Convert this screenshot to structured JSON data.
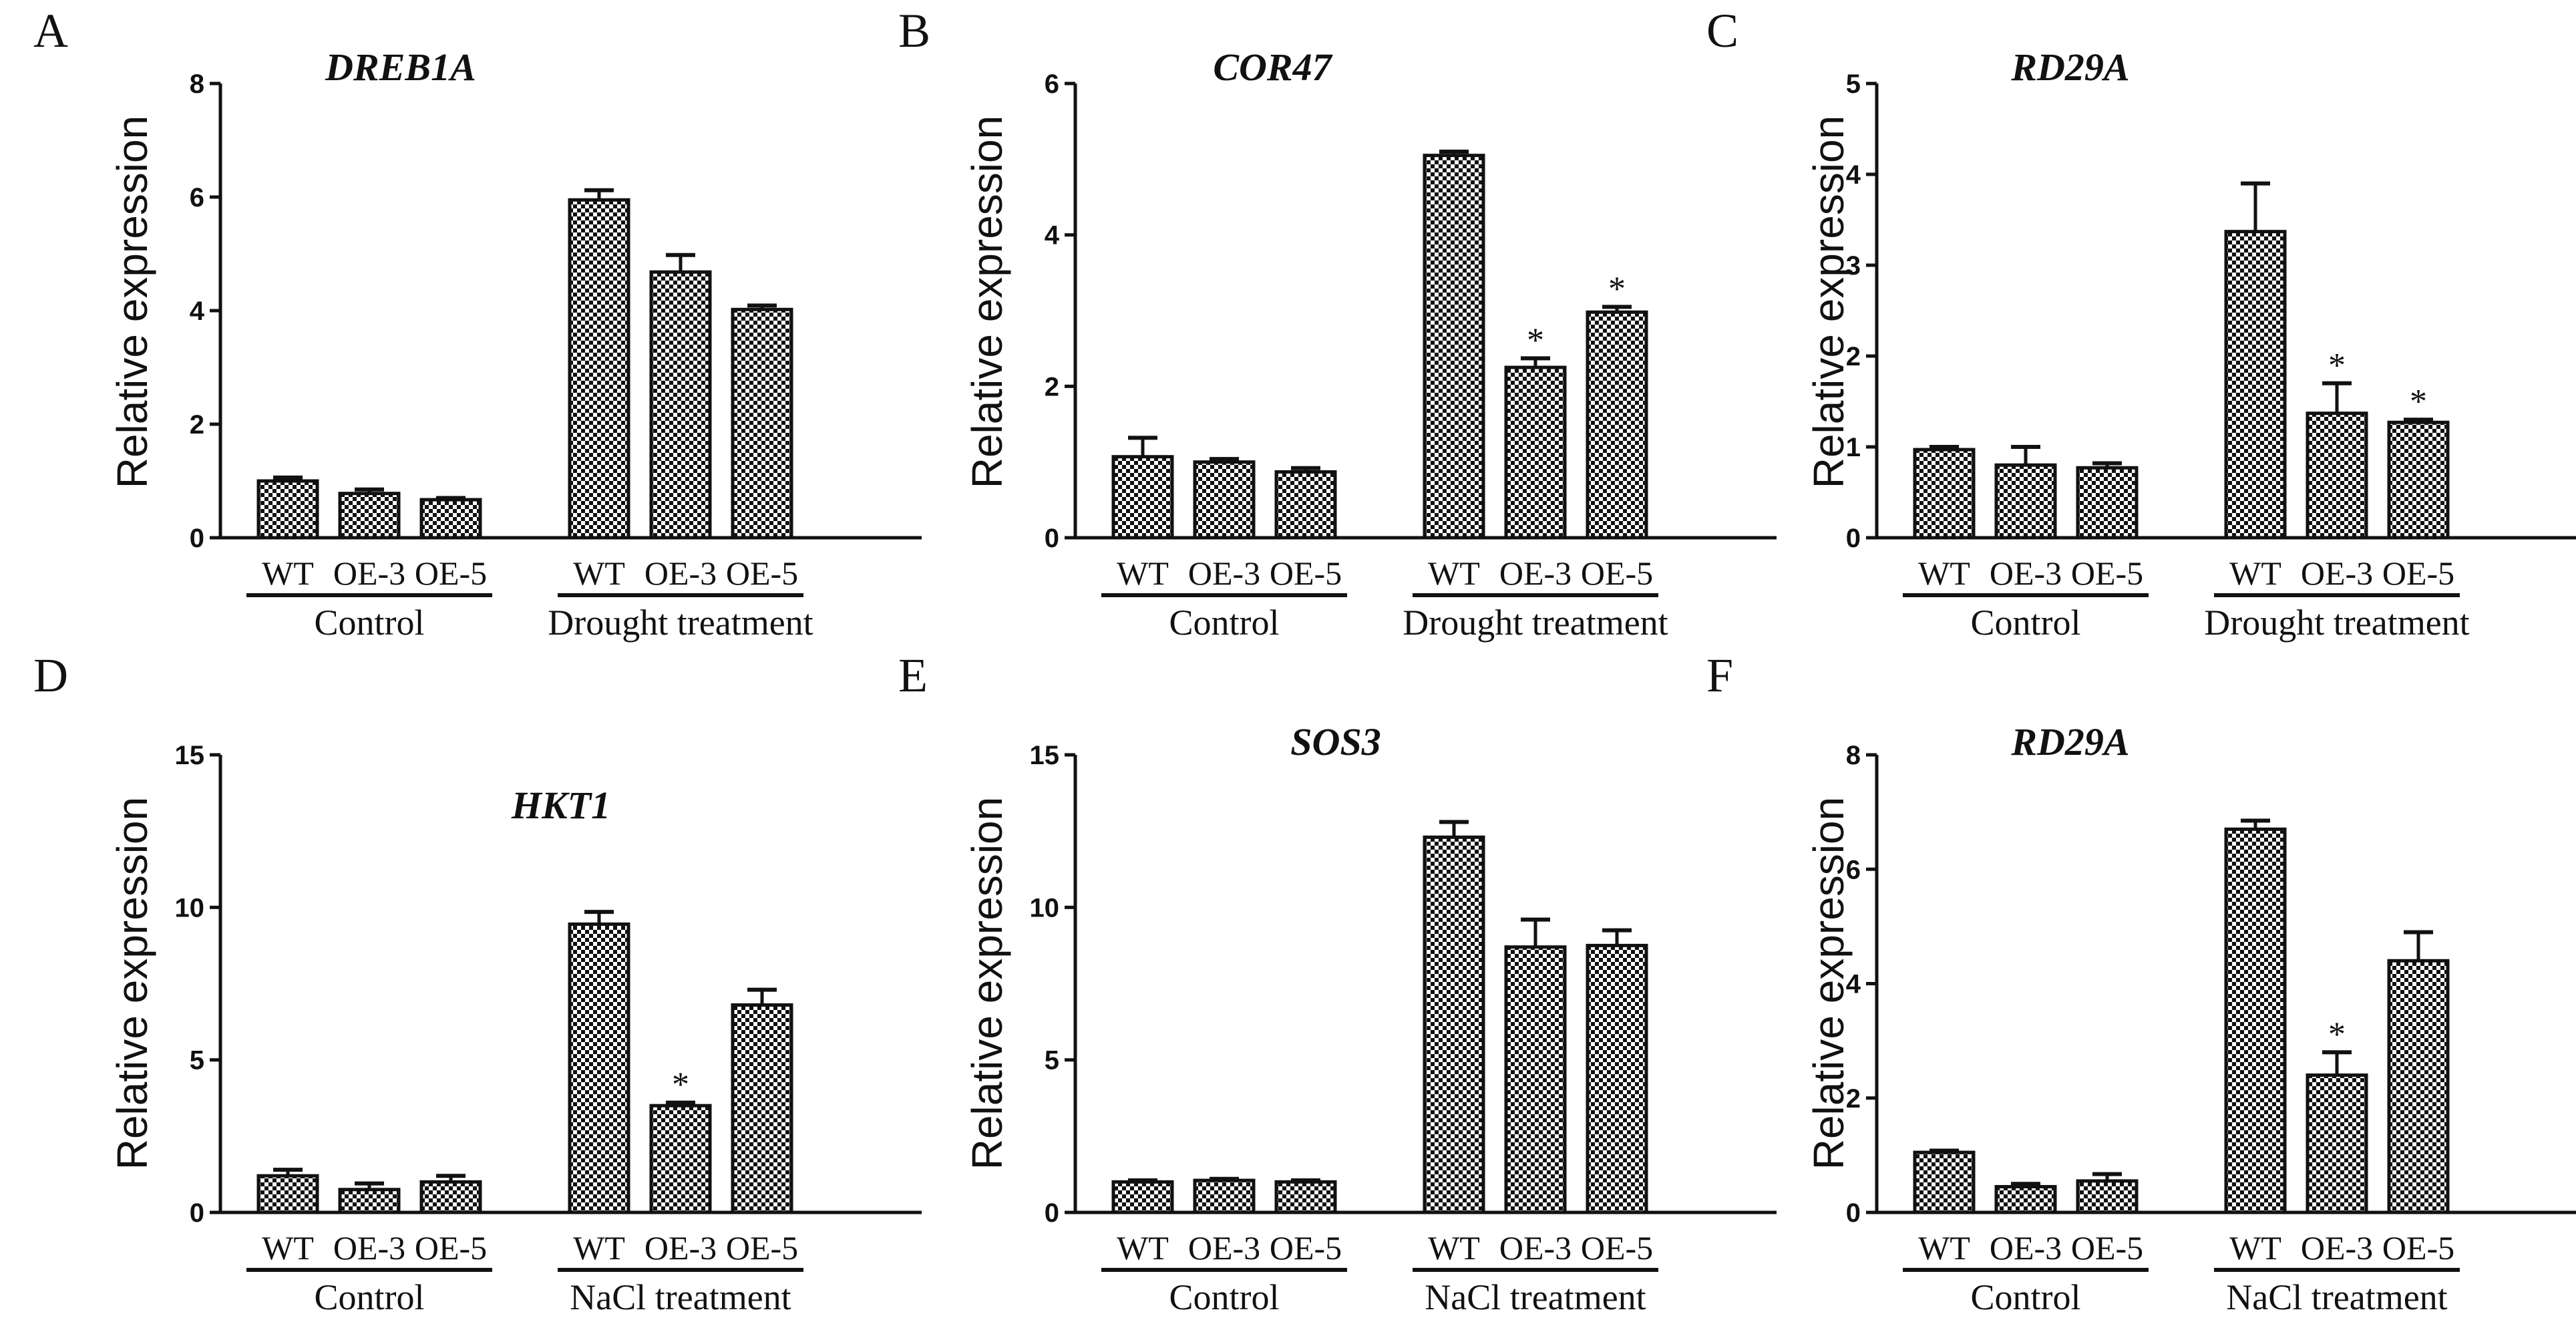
{
  "chart_data": [
    {
      "type": "bar",
      "panel": "A",
      "title": "DREB1A",
      "ylabel": "Relative expression",
      "ylim": [
        0,
        8
      ],
      "yticks": [
        0,
        2,
        4,
        6,
        8
      ],
      "groups": [
        {
          "label": "Control",
          "categories": [
            "WT",
            "OE-3",
            "OE-5"
          ],
          "values": [
            1.0,
            0.78,
            0.67
          ],
          "errors": [
            0.06,
            0.07,
            0.03
          ],
          "significant": [
            false,
            false,
            false
          ]
        },
        {
          "label": "Drought treatment",
          "categories": [
            "WT",
            "OE-3",
            "OE-5"
          ],
          "values": [
            5.95,
            4.68,
            4.02
          ],
          "errors": [
            0.17,
            0.3,
            0.07
          ],
          "significant": [
            false,
            false,
            false
          ]
        }
      ]
    },
    {
      "type": "bar",
      "panel": "B",
      "title": "COR47",
      "ylabel": "Relative expression",
      "ylim": [
        0,
        6
      ],
      "yticks": [
        0,
        2,
        4,
        6
      ],
      "groups": [
        {
          "label": "Control",
          "categories": [
            "WT",
            "OE-3",
            "OE-5"
          ],
          "values": [
            1.07,
            1.0,
            0.87
          ],
          "errors": [
            0.25,
            0.04,
            0.05
          ],
          "significant": [
            false,
            false,
            false
          ]
        },
        {
          "label": "Drought treatment",
          "categories": [
            "WT",
            "OE-3",
            "OE-5"
          ],
          "values": [
            5.05,
            2.25,
            2.98
          ],
          "errors": [
            0.05,
            0.12,
            0.07
          ],
          "significant": [
            false,
            true,
            true
          ]
        }
      ]
    },
    {
      "type": "bar",
      "panel": "C",
      "title": "RD29A",
      "ylabel": "Relative expression",
      "ylim": [
        0,
        5
      ],
      "yticks": [
        0,
        1,
        2,
        3,
        4,
        5
      ],
      "groups": [
        {
          "label": "Control",
          "categories": [
            "WT",
            "OE-3",
            "OE-5"
          ],
          "values": [
            0.97,
            0.8,
            0.77
          ],
          "errors": [
            0.03,
            0.2,
            0.05
          ],
          "significant": [
            false,
            false,
            false
          ]
        },
        {
          "label": "Drought treatment",
          "categories": [
            "WT",
            "OE-3",
            "OE-5"
          ],
          "values": [
            3.37,
            1.37,
            1.27
          ],
          "errors": [
            0.53,
            0.33,
            0.03
          ],
          "significant": [
            false,
            true,
            true
          ]
        }
      ]
    },
    {
      "type": "bar",
      "panel": "D",
      "title": "HKT1",
      "ylabel": "Relative expression",
      "ylim": [
        0,
        15
      ],
      "yticks": [
        0,
        5,
        10,
        15
      ],
      "groups": [
        {
          "label": "Control",
          "categories": [
            "WT",
            "OE-3",
            "OE-5"
          ],
          "values": [
            1.2,
            0.75,
            1.0
          ],
          "errors": [
            0.2,
            0.2,
            0.2
          ],
          "significant": [
            false,
            false,
            false
          ]
        },
        {
          "label": "NaCl treatment",
          "categories": [
            "WT",
            "OE-3",
            "OE-5"
          ],
          "values": [
            9.45,
            3.5,
            6.8
          ],
          "errors": [
            0.4,
            0.1,
            0.5
          ],
          "significant": [
            false,
            true,
            false
          ]
        }
      ]
    },
    {
      "type": "bar",
      "panel": "E",
      "title": "SOS3",
      "ylabel": "Relative expression",
      "ylim": [
        0,
        15
      ],
      "yticks": [
        0,
        5,
        10,
        15
      ],
      "groups": [
        {
          "label": "Control",
          "categories": [
            "WT",
            "OE-3",
            "OE-5"
          ],
          "values": [
            1.0,
            1.05,
            1.0
          ],
          "errors": [
            0.05,
            0.05,
            0.05
          ],
          "significant": [
            false,
            false,
            false
          ]
        },
        {
          "label": "NaCl treatment",
          "categories": [
            "WT",
            "OE-3",
            "OE-5"
          ],
          "values": [
            12.3,
            8.7,
            8.75
          ],
          "errors": [
            0.5,
            0.9,
            0.5
          ],
          "significant": [
            false,
            false,
            false
          ]
        }
      ]
    },
    {
      "type": "bar",
      "panel": "F",
      "title": "RD29A",
      "ylabel": "Relative expression",
      "ylim": [
        0,
        8
      ],
      "yticks": [
        0,
        2,
        4,
        6,
        8
      ],
      "groups": [
        {
          "label": "Control",
          "categories": [
            "WT",
            "OE-3",
            "OE-5"
          ],
          "values": [
            1.05,
            0.45,
            0.55
          ],
          "errors": [
            0.03,
            0.05,
            0.12
          ],
          "significant": [
            false,
            false,
            false
          ]
        },
        {
          "label": "NaCl treatment",
          "categories": [
            "WT",
            "OE-3",
            "OE-5"
          ],
          "values": [
            6.7,
            2.4,
            4.4
          ],
          "errors": [
            0.15,
            0.4,
            0.5
          ],
          "significant": [
            false,
            true,
            false
          ]
        }
      ]
    }
  ]
}
